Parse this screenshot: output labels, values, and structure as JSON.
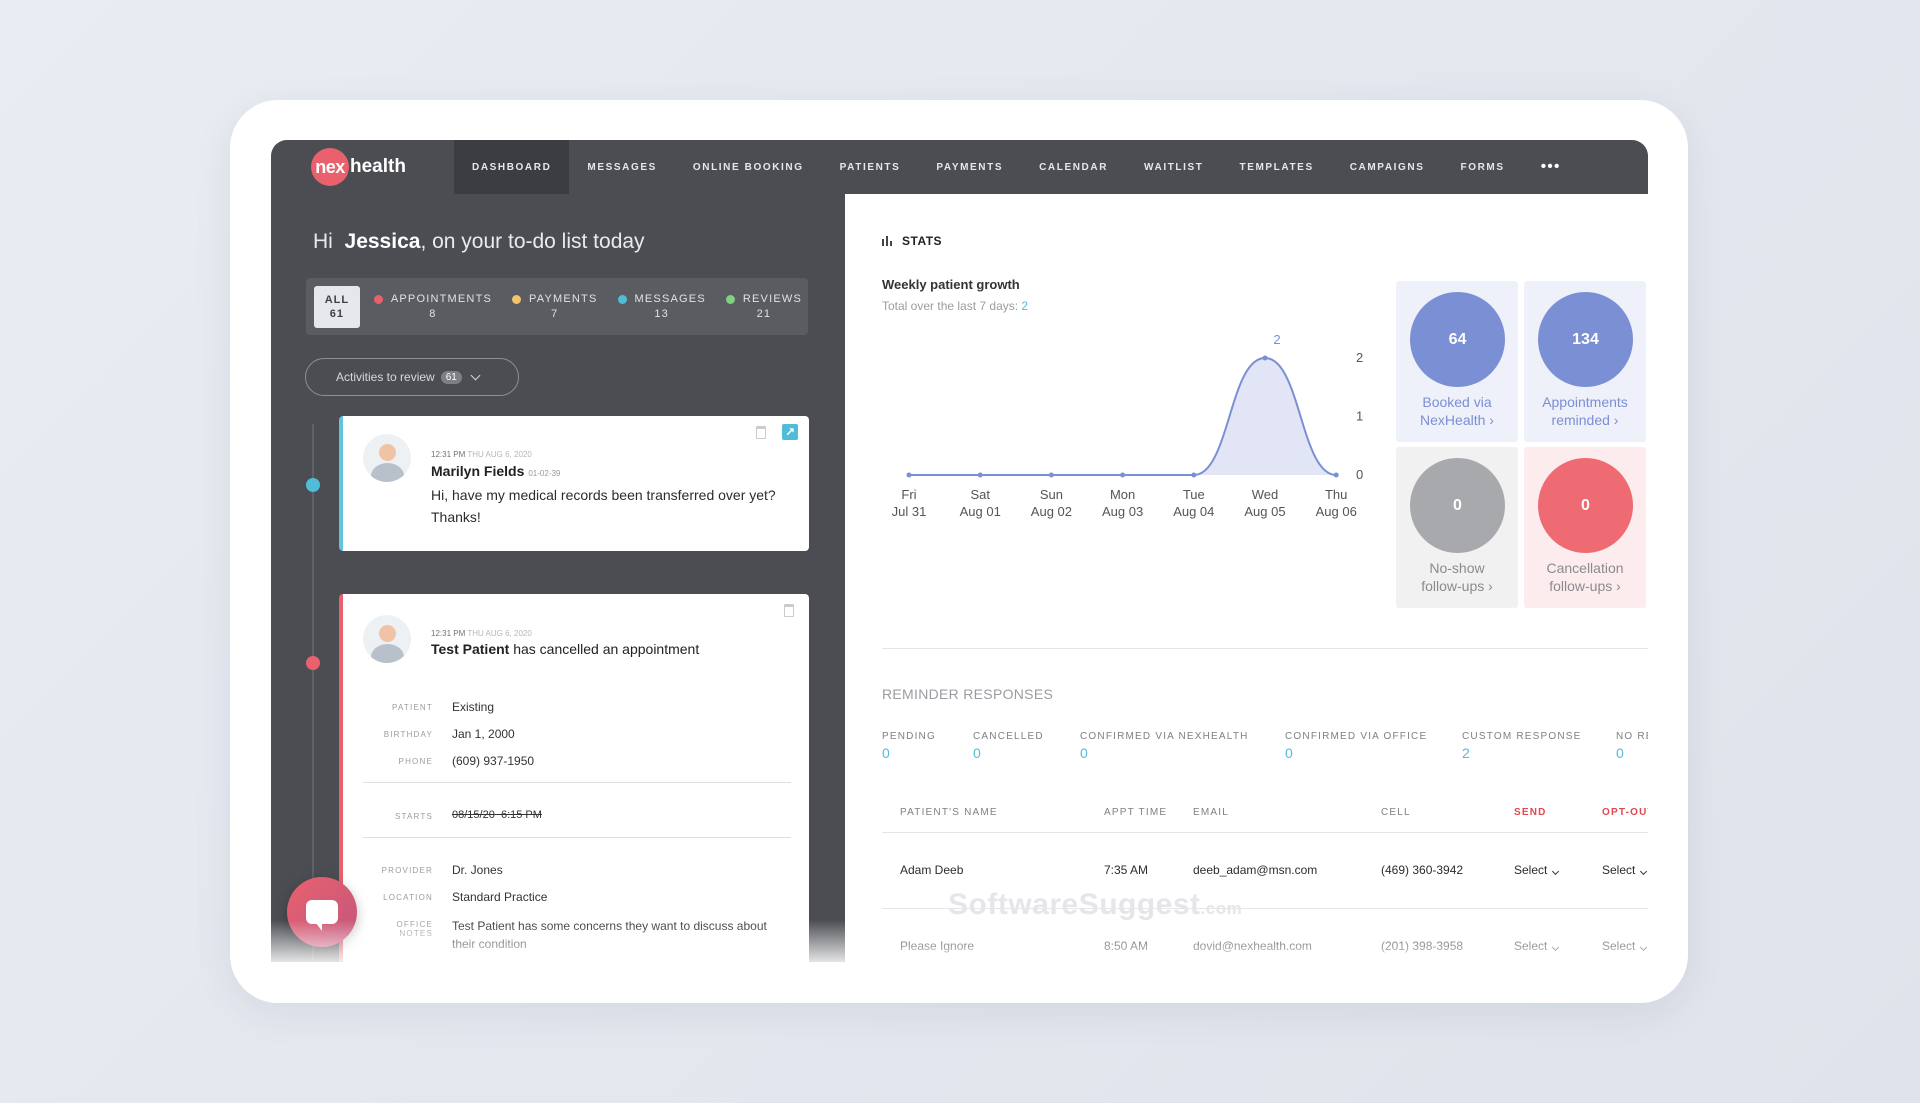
{
  "logo": {
    "mark": "nex",
    "text": "health"
  },
  "nav": {
    "items": [
      "DASHBOARD",
      "MESSAGES",
      "ONLINE BOOKING",
      "PATIENTS",
      "PAYMENTS",
      "CALENDAR",
      "WAITLIST",
      "TEMPLATES",
      "CAMPAIGNS",
      "FORMS"
    ],
    "active": "DASHBOARD",
    "more": "•••"
  },
  "greeting": {
    "prefix": "Hi",
    "name": "Jessica",
    "suffix": ", on your to-do list today"
  },
  "filters": {
    "all": {
      "label": "ALL",
      "count": "61"
    },
    "items": [
      {
        "label": "APPOINTMENTS",
        "count": "8",
        "color": "#e8616d"
      },
      {
        "label": "PAYMENTS",
        "count": "7",
        "color": "#f2c46b"
      },
      {
        "label": "MESSAGES",
        "count": "13",
        "color": "#4fbdd8"
      },
      {
        "label": "REVIEWS",
        "count": "21",
        "color": "#7fd17f"
      }
    ]
  },
  "review": {
    "label": "Activities to review",
    "count": "61"
  },
  "cards": [
    {
      "time": "12:31 PM",
      "date": "THU AUG 6, 2020",
      "name": "Marilyn Fields",
      "dob": "01-02-39",
      "message": "Hi, have my medical records been transferred over yet? Thanks!"
    },
    {
      "time": "12:31 PM",
      "date": "THU AUG 6, 2020",
      "name": "Test Patient",
      "action": "has cancelled an appointment",
      "details": {
        "patient_label": "PATIENT",
        "patient": "Existing",
        "birthday_label": "BIRTHDAY",
        "birthday": "Jan 1, 2000",
        "phone_label": "PHONE",
        "phone": "(609) 937-1950",
        "starts_label": "STARTS",
        "starts_date": "08/15/20",
        "starts_time": "6:15 PM",
        "provider_label": "PROVIDER",
        "provider": "Dr. Jones",
        "location_label": "LOCATION",
        "location": "Standard Practice",
        "notes_label": "OFFICE NOTES",
        "notes": "Test Patient has some concerns they want to discuss about their condition"
      }
    }
  ],
  "stats": {
    "title": "STATS",
    "weekly_title": "Weekly patient growth",
    "weekly_sub": "Total over the last 7 days:",
    "weekly_total": "2"
  },
  "chart_data": {
    "type": "area",
    "title": "Weekly patient growth",
    "categories": [
      [
        "Fri",
        "Jul 31"
      ],
      [
        "Sat",
        "Aug 01"
      ],
      [
        "Sun",
        "Aug 02"
      ],
      [
        "Mon",
        "Aug 03"
      ],
      [
        "Tue",
        "Aug 04"
      ],
      [
        "Wed",
        "Aug 05"
      ],
      [
        "Thu",
        "Aug 06"
      ]
    ],
    "values": [
      0,
      0,
      0,
      0,
      0,
      2,
      0
    ],
    "data_labels": {
      "5": "2"
    },
    "yticks": [
      "0",
      "1",
      "2",
      "3"
    ],
    "ylim": [
      0,
      3
    ],
    "color": "#7b8fd4",
    "fill": "#e1e5f6"
  },
  "tiles": [
    {
      "value": "64",
      "line1": "Booked via",
      "line2": "NexHealth ›",
      "bg": "#eef0fa",
      "circle": "#7b8fd4",
      "text": "#7b8fd4"
    },
    {
      "value": "134",
      "line1": "Appointments",
      "line2": "reminded ›",
      "bg": "#eef0fa",
      "circle": "#7b8fd4",
      "text": "#7b8fd4"
    },
    {
      "value": "0",
      "line1": "No-show",
      "line2": "follow-ups ›",
      "bg": "#f1f1f2",
      "circle": "#a8a9ad",
      "text": "#8a8b8f"
    },
    {
      "value": "0",
      "line1": "Cancellation",
      "line2": "follow-ups ›",
      "bg": "#fdeced",
      "circle": "#ee6b73",
      "text": "#8a8b8f"
    }
  ],
  "reminders": {
    "title": "REMINDER RESPONSES",
    "summary": [
      {
        "label": "PENDING",
        "value": "0"
      },
      {
        "label": "CANCELLED",
        "value": "0"
      },
      {
        "label": "CONFIRMED VIA NEXHEALTH",
        "value": "0"
      },
      {
        "label": "CONFIRMED VIA OFFICE",
        "value": "0"
      },
      {
        "label": "CUSTOM RESPONSE",
        "value": "2"
      },
      {
        "label": "NO RE",
        "value": "0"
      }
    ],
    "columns": [
      "PATIENT'S NAME",
      "APPT TIME",
      "EMAIL",
      "CELL",
      "SEND",
      "OPT-OUT"
    ],
    "rows": [
      {
        "name": "Adam Deeb",
        "time": "7:35 AM",
        "email": "deeb_adam@msn.com",
        "cell": "(469) 360-3942",
        "send": "Select",
        "optout": "Select"
      },
      {
        "name": "Please Ignore",
        "time": "8:50 AM",
        "email": "dovid@nexhealth.com",
        "cell": "(201) 398-3958",
        "send": "Select",
        "optout": "Select"
      }
    ]
  },
  "watermark": {
    "main": "SoftwareSuggest",
    "suffix": ".com"
  }
}
